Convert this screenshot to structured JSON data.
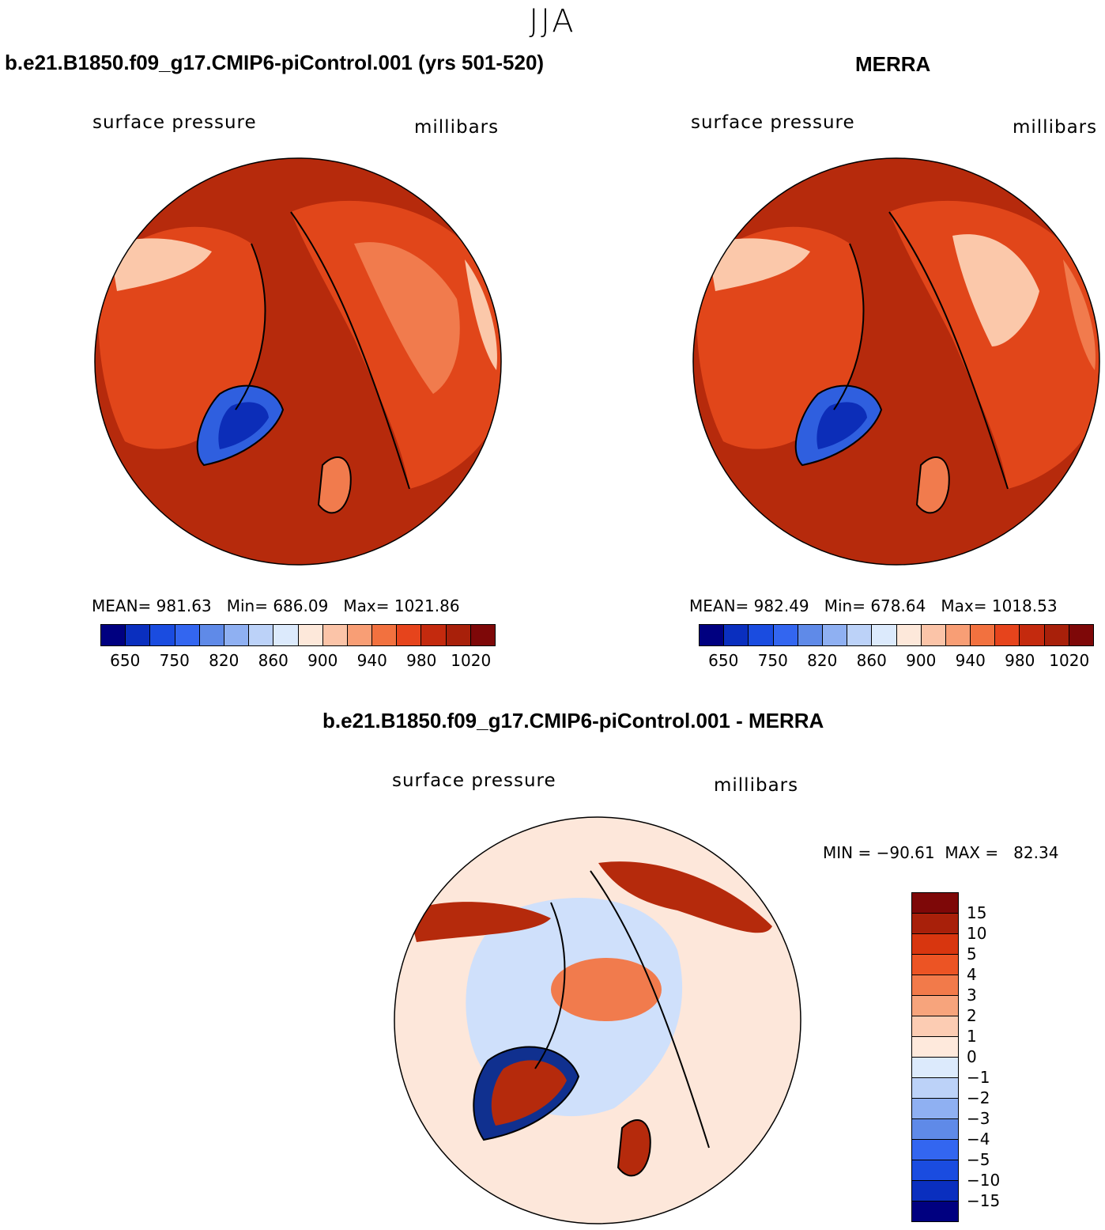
{
  "season": "JJA",
  "panels": [
    {
      "title": "b.e21.B1850.f09_g17.CMIP6-piControl.001 (yrs 501-520)",
      "variable": "surface pressure",
      "units": "millibars",
      "stats": {
        "mean_label": "MEAN=",
        "mean": "981.63",
        "min_label": "Min=",
        "min": "686.09",
        "max_label": "Max=",
        "max": "1021.86"
      }
    },
    {
      "title": "MERRA",
      "variable": "surface pressure",
      "units": "millibars",
      "stats": {
        "mean_label": "MEAN=",
        "mean": "982.49",
        "min_label": "Min=",
        "min": "678.64",
        "max_label": "Max=",
        "max": "1018.53"
      }
    }
  ],
  "abs_colorbar": {
    "colors": [
      "#000080",
      "#0a2fbf",
      "#1a4ce0",
      "#3366f0",
      "#5f8ae8",
      "#8fb0f2",
      "#bcd2f8",
      "#dceafc",
      "#fde8da",
      "#fbc4a8",
      "#f89e75",
      "#f2713f",
      "#e6441c",
      "#c42a0e",
      "#a8200a",
      "#7e0808"
    ],
    "labels": [
      "650",
      "750",
      "820",
      "860",
      "900",
      "940",
      "980",
      "1020"
    ]
  },
  "diff_panel": {
    "title": "b.e21.B1850.f09_g17.CMIP6-piControl.001 - MERRA",
    "variable": "surface pressure",
    "units": "millibars",
    "min_label": "MIN =",
    "min": "−90.61",
    "max_label": "MAX =",
    "max": "82.34"
  },
  "diff_colorbar": {
    "colors": [
      "#7e0808",
      "#a8200a",
      "#d8360f",
      "#ec5424",
      "#f27a4a",
      "#f7a47c",
      "#fcccb3",
      "#fee9dc",
      "#dceafc",
      "#bcd2f8",
      "#8fb0f2",
      "#5f8ae8",
      "#3366f0",
      "#1a4ce0",
      "#0a2fbf",
      "#000080"
    ],
    "labels": [
      "15",
      "10",
      "5",
      "4",
      "3",
      "2",
      "1",
      "0",
      "−1",
      "−2",
      "−3",
      "−4",
      "−5",
      "−10",
      "−15"
    ]
  },
  "map_colors": {
    "high": "#b62a0c",
    "mid": "#e1461a",
    "light": "#f17b4d",
    "pale": "#fbc8aa",
    "lowblue": "#2f5fdf",
    "deepblue": "#0c2db8",
    "diff_bg": "#fde7da",
    "diff_blue": "#cfe0fb",
    "diff_red": "#b52a0c",
    "diff_darkblue": "#10308f"
  }
}
